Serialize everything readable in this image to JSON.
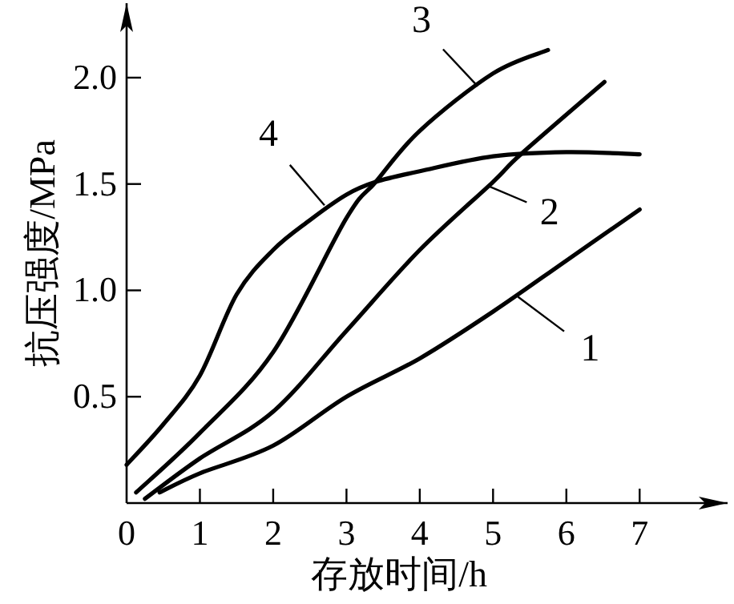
{
  "chart_data": {
    "type": "line",
    "xlabel": "存放时间/h",
    "ylabel": "抗压强度/MPa",
    "xlim": [
      0,
      8.2
    ],
    "ylim": [
      0,
      2.35
    ],
    "xticks": [
      0,
      1,
      2,
      3,
      4,
      5,
      6,
      7
    ],
    "yticks": [
      0.5,
      {
        "value": 1.0,
        "label": "1.0"
      },
      1.5,
      {
        "value": 2.0,
        "label": "2.0"
      }
    ],
    "grid": false,
    "series": [
      {
        "color": "#000000",
        "x": [
          0.45,
          1,
          2,
          3,
          4,
          5,
          6,
          7
        ],
        "values": [
          0.05,
          0.14,
          0.27,
          0.5,
          0.68,
          0.9,
          1.14,
          1.38
        ]
      },
      {
        "color": "#000000",
        "x": [
          0.25,
          1,
          2,
          3,
          4,
          5,
          5.38,
          6.52
        ],
        "values": [
          0.02,
          0.21,
          0.43,
          0.81,
          1.19,
          1.51,
          1.64,
          1.98
        ]
      },
      {
        "color": "#000000",
        "x": [
          0.13,
          1,
          2,
          3,
          3.4,
          4,
          5,
          5.75
        ],
        "values": [
          0.05,
          0.33,
          0.71,
          1.34,
          1.51,
          1.75,
          2.02,
          2.13
        ]
      },
      {
        "color": "#000000",
        "x": [
          0,
          0.5,
          1,
          1.5,
          2,
          2.5,
          3,
          3.4,
          4,
          5,
          6,
          7
        ],
        "values": [
          0.18,
          0.37,
          0.6,
          0.98,
          1.19,
          1.33,
          1.45,
          1.51,
          1.56,
          1.63,
          1.65,
          1.64
        ]
      }
    ],
    "annotations": [
      {
        "text": "1",
        "x": 5.34,
        "y": 0.97
      },
      {
        "text": "2",
        "x": 4.94,
        "y": 1.49
      },
      {
        "text": "3",
        "x": 4.79,
        "y": 1.96
      },
      {
        "text": "4",
        "x": 2.7,
        "y": 1.4
      }
    ]
  }
}
